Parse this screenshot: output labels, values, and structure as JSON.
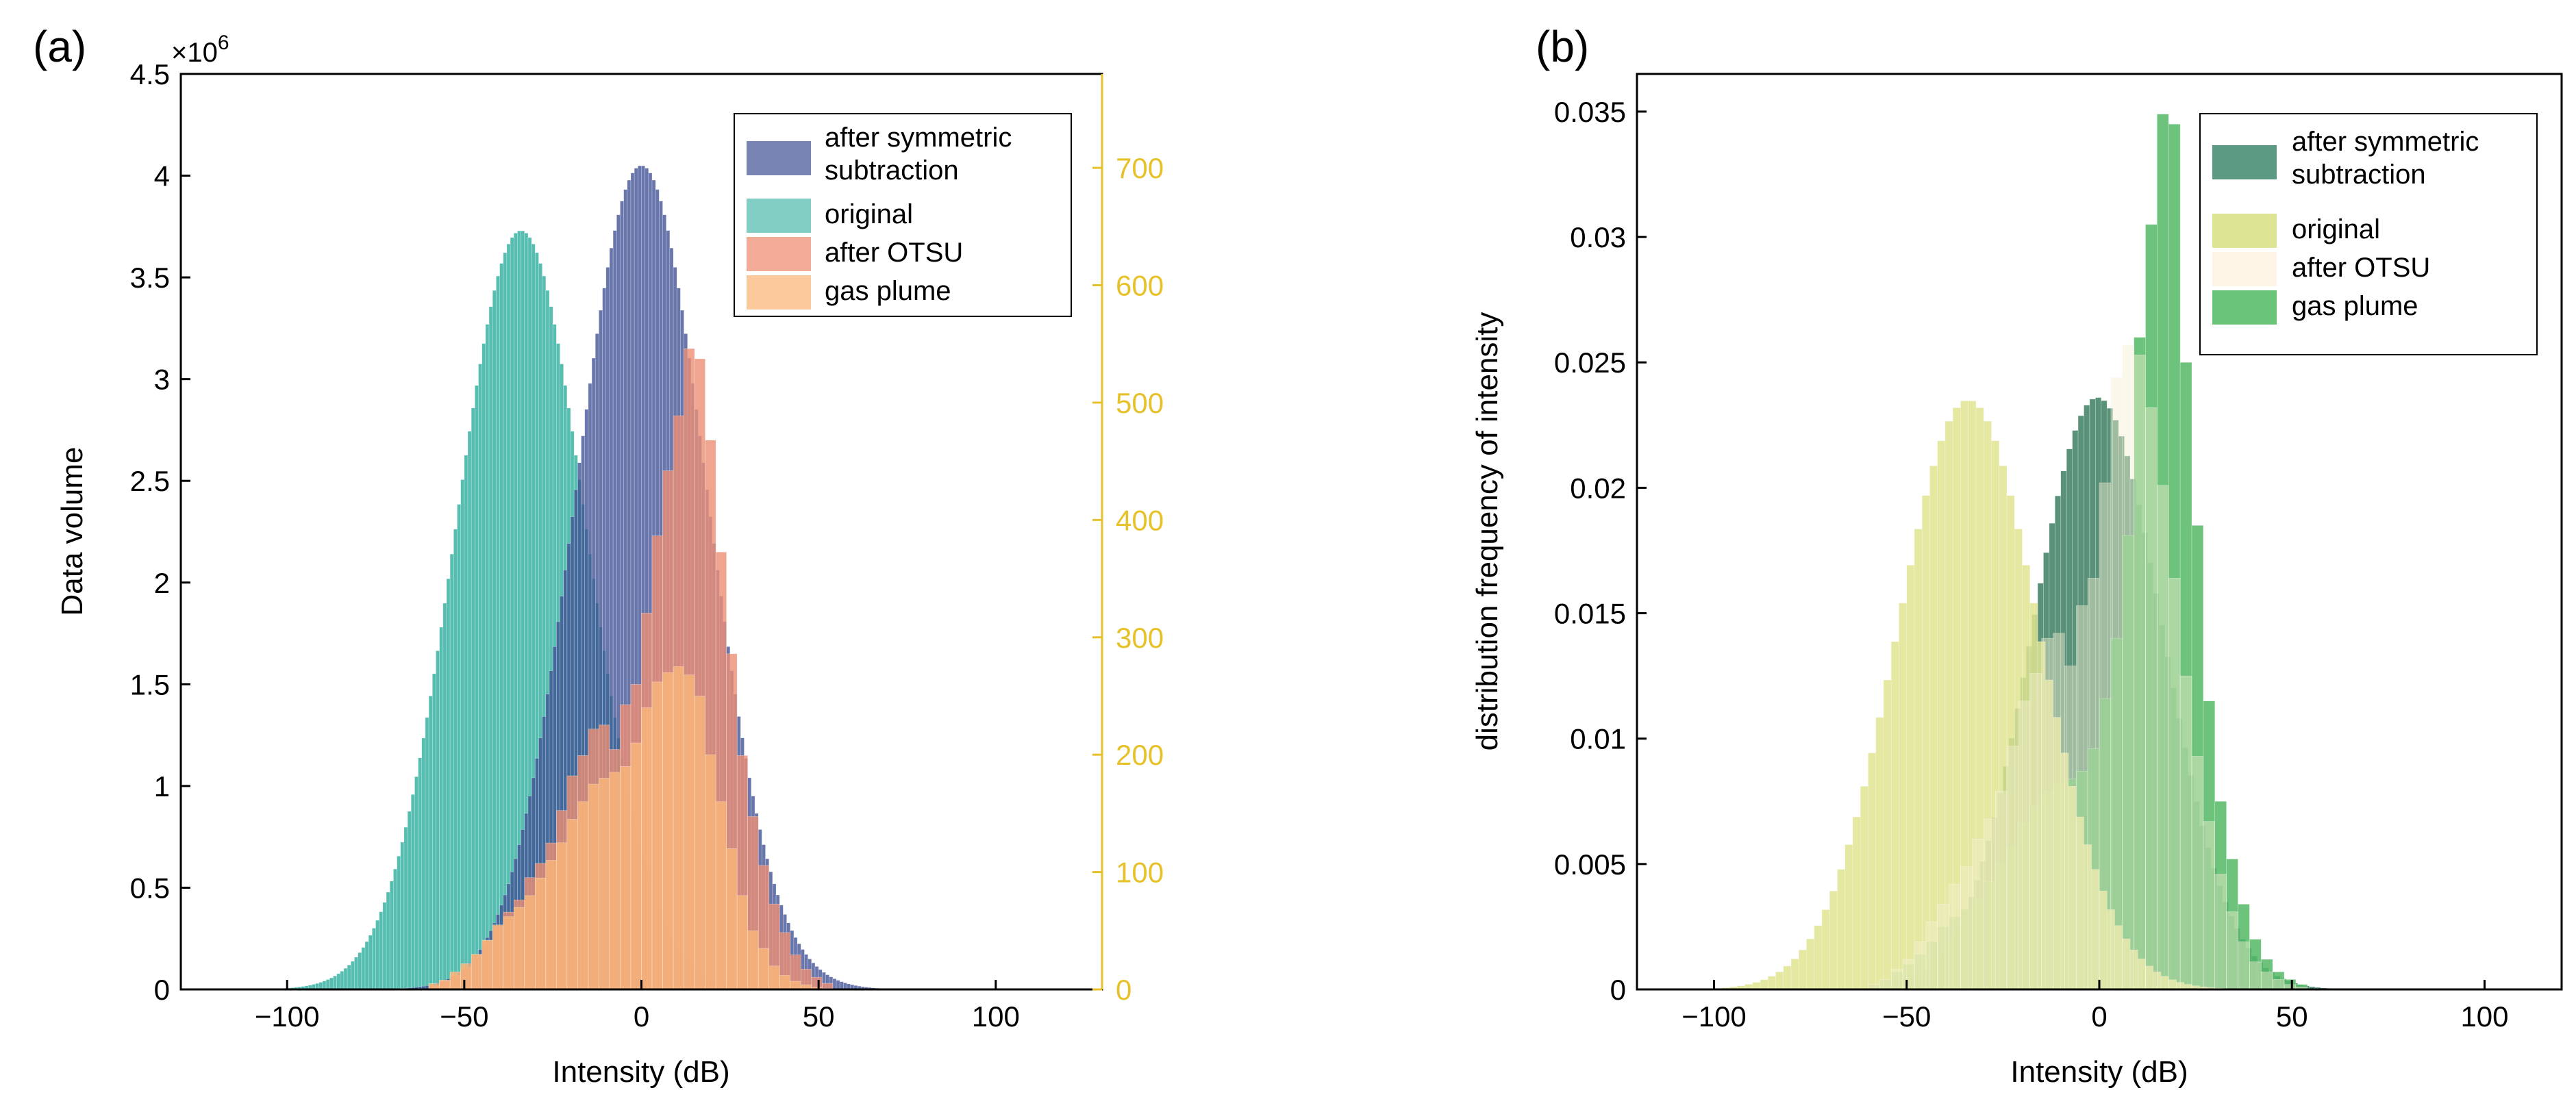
{
  "chart_data": [
    {
      "panel_label": "(a)",
      "type": "histogram",
      "xlabel": "Intensity (dB)",
      "ylabel": "Data volume",
      "xlim": [
        -130,
        130
      ],
      "ylim": [
        0,
        4500000
      ],
      "y_exponent_label": "×10",
      "y_exponent_sup": "6",
      "x_ticks": [
        -100,
        -50,
        0,
        50,
        100
      ],
      "x_tick_labels": [
        "−100",
        "−50",
        "0",
        "50",
        "100"
      ],
      "y_ticks": [
        0,
        0.5,
        1,
        1.5,
        2,
        2.5,
        3,
        3.5,
        4,
        4.5
      ],
      "y_tick_labels": [
        "0",
        "0.5",
        "1",
        "1.5",
        "2",
        "2.5",
        "3",
        "3.5",
        "4",
        "4.5"
      ],
      "y2lim": [
        0,
        780
      ],
      "y2_ticks": [
        0,
        100,
        200,
        300,
        400,
        500,
        600,
        700
      ],
      "y2_tick_labels": [
        "0",
        "100",
        "200",
        "300",
        "400",
        "500",
        "600",
        "700"
      ],
      "y2_color": "#e6c12a",
      "legend": {
        "position": "top-right",
        "entries": [
          {
            "lines": [
              "after symmetric",
              "subtraction"
            ],
            "color": "#3e5094"
          },
          {
            "lines": [
              "original"
            ],
            "color": "#4db9ad"
          },
          {
            "lines": [
              "after OTSU"
            ],
            "color": "#ec8f74"
          },
          {
            "lines": [
              "gas plume"
            ],
            "color": "#f8b57a"
          }
        ]
      },
      "series": [
        {
          "name": "original",
          "axis": "left",
          "color": "#4db9ad",
          "opacity": 0.95,
          "kind": "gaussian",
          "center": -34,
          "sigma": 18.5,
          "peak": 3730000,
          "bin_width": 1,
          "range": [
            -122,
            40
          ]
        },
        {
          "name": "after symmetric subtraction",
          "axis": "left",
          "color": "#3e5094",
          "opacity": 0.78,
          "kind": "gaussian",
          "center": 0,
          "sigma": 18.5,
          "peak": 4050000,
          "bin_width": 1,
          "range": [
            -72,
            80
          ]
        },
        {
          "name": "after OTSU",
          "axis": "left",
          "color": "#ec8f74",
          "opacity": 0.8,
          "kind": "bins",
          "bin_start": -60,
          "bin_width": 3,
          "values": [
            20000,
            40000,
            70000,
            110000,
            170000,
            240000,
            310000,
            380000,
            440000,
            550000,
            620000,
            720000,
            880000,
            1050000,
            1150000,
            1280000,
            1300000,
            1180000,
            1400000,
            1500000,
            1850000,
            2230000,
            2550000,
            2820000,
            3150000,
            3100000,
            2700000,
            2150000,
            1650000,
            1150000,
            850000,
            610000,
            420000,
            280000,
            170000,
            100000,
            60000,
            30000
          ]
        },
        {
          "name": "gas plume",
          "axis": "right",
          "color": "#f8b57a",
          "opacity": 0.85,
          "kind": "bins",
          "bin_start": -60,
          "bin_width": 3,
          "values": [
            5,
            8,
            15,
            22,
            30,
            42,
            55,
            62,
            70,
            80,
            95,
            110,
            125,
            145,
            160,
            175,
            180,
            185,
            190,
            210,
            240,
            262,
            270,
            275,
            268,
            250,
            200,
            160,
            120,
            80,
            50,
            35,
            20,
            12,
            7,
            4,
            2,
            1
          ]
        }
      ]
    },
    {
      "panel_label": "(b)",
      "type": "histogram",
      "xlabel": "Intensity (dB)",
      "ylabel": "distribution frequency of intensity",
      "xlim": [
        -120,
        120
      ],
      "ylim": [
        0,
        0.0365
      ],
      "x_ticks": [
        -100,
        -50,
        0,
        50,
        100
      ],
      "x_tick_labels": [
        "−100",
        "−50",
        "0",
        "50",
        "100"
      ],
      "y_ticks": [
        0,
        0.005,
        0.01,
        0.015,
        0.02,
        0.025,
        0.03,
        0.035
      ],
      "y_tick_labels": [
        "0",
        "0.005",
        "0.01",
        "0.015",
        "0.02",
        "0.025",
        "0.03",
        "0.035"
      ],
      "legend": {
        "position": "top-right",
        "entries": [
          {
            "lines": [
              "after symmetric",
              "subtraction"
            ],
            "color": "#5c9a84"
          },
          {
            "lines": [
              "original"
            ],
            "color": "#dde493"
          },
          {
            "lines": [
              "after OTSU"
            ],
            "color": "#fdf4e6"
          },
          {
            "lines": [
              "gas plume"
            ],
            "color": "#6ac477"
          }
        ]
      },
      "series": [
        {
          "name": "after symmetric subtraction",
          "color": "#3d7f62",
          "opacity": 0.85,
          "kind": "gaussian",
          "center": -0.5,
          "sigma": 17,
          "peak": 0.0236,
          "bin_width": 1.5,
          "range": [
            -70,
            75
          ]
        },
        {
          "name": "gas plume",
          "color": "#54b865",
          "opacity": 0.85,
          "kind": "bins",
          "bin_start": -60,
          "bin_width": 3,
          "values": [
            0.0002,
            0.0004,
            0.0007,
            0.001,
            0.0014,
            0.0019,
            0.0025,
            0.0029,
            0.0032,
            0.0036,
            0.0043,
            0.005,
            0.0057,
            0.0066,
            0.0073,
            0.0079,
            0.0082,
            0.0084,
            0.0087,
            0.0096,
            0.0116,
            0.014,
            0.0181,
            0.026,
            0.0305,
            0.0349,
            0.0345,
            0.025,
            0.0185,
            0.0115,
            0.0075,
            0.0052,
            0.0034,
            0.002,
            0.0012,
            0.0007,
            0.0004,
            0.0002
          ]
        },
        {
          "name": "original",
          "color": "#dfe48f",
          "opacity": 0.85,
          "kind": "gaussian",
          "center": -34,
          "sigma": 18.5,
          "peak": 0.0235,
          "bin_width": 2,
          "range": [
            -118,
            40
          ]
        },
        {
          "name": "after OTSU",
          "color": "#f5efd0",
          "opacity": 0.45,
          "kind": "bins",
          "bin_start": -60,
          "bin_width": 3,
          "values": [
            0.0002,
            0.0004,
            0.0008,
            0.0012,
            0.0019,
            0.0027,
            0.0034,
            0.0042,
            0.0049,
            0.006,
            0.0068,
            0.0079,
            0.0097,
            0.0115,
            0.0126,
            0.014,
            0.0142,
            0.0129,
            0.0153,
            0.0164,
            0.0202,
            0.0244,
            0.0257,
            0.0253,
            0.0232,
            0.0201,
            0.0164,
            0.0125,
            0.0093,
            0.0067,
            0.0046,
            0.0031,
            0.0019,
            0.0011,
            0.0007,
            0.0004,
            0.0002,
            0.0001
          ]
        }
      ]
    }
  ]
}
